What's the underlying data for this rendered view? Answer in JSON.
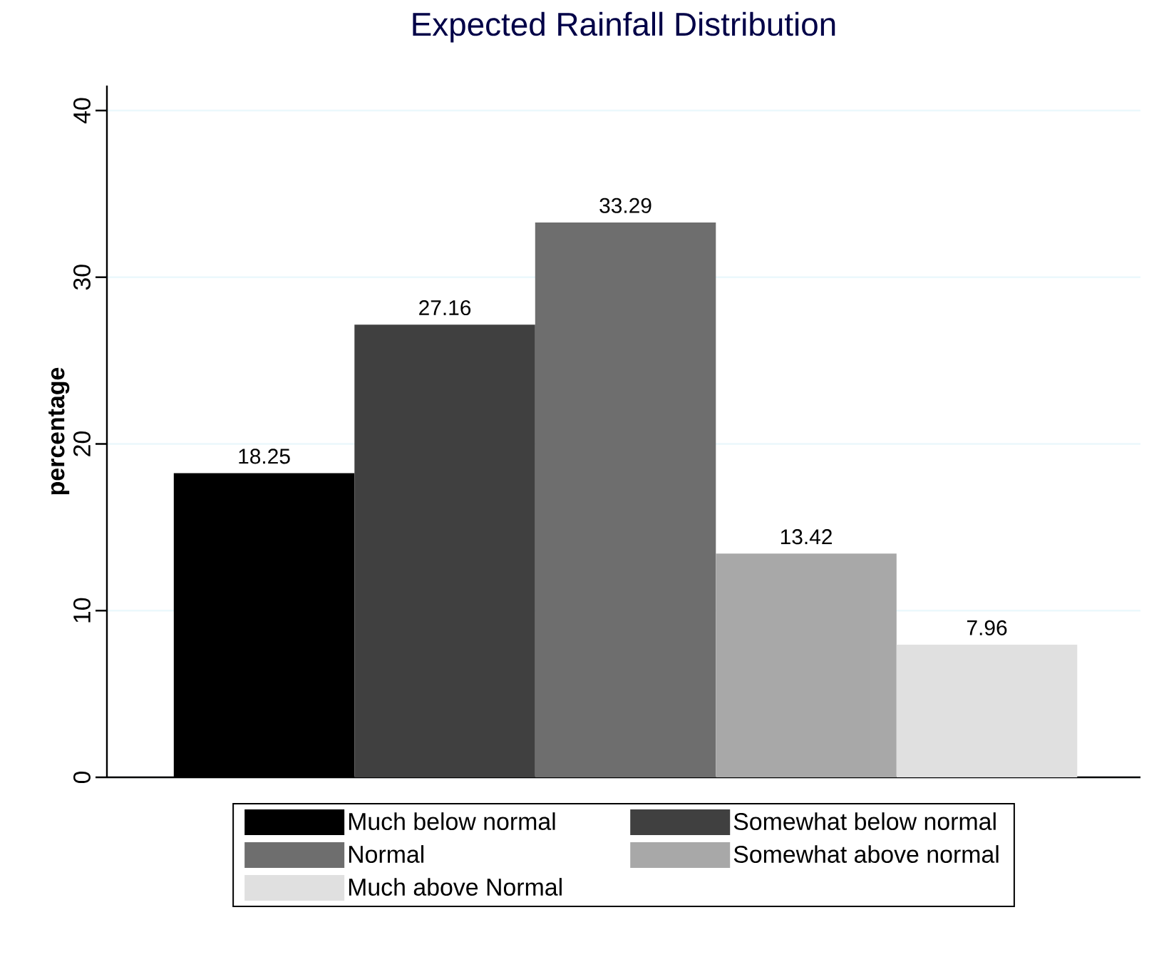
{
  "chart_data": {
    "type": "bar",
    "title": "Expected Rainfall Distribution",
    "ylabel": "percentage",
    "categories": [
      null,
      null,
      null,
      null,
      null
    ],
    "series": [
      {
        "name": "Much below normal",
        "color": "#000000",
        "values": [
          18.25,
          null,
          null,
          null,
          null
        ]
      },
      {
        "name": "Somewhat below normal",
        "color": "#404040",
        "values": [
          null,
          27.16,
          null,
          null,
          null
        ]
      },
      {
        "name": "Normal",
        "color": "#6e6e6e",
        "values": [
          null,
          null,
          33.29,
          null,
          null
        ]
      },
      {
        "name": "Somewhat above normal",
        "color": "#a8a8a8",
        "values": [
          null,
          null,
          null,
          13.42,
          null
        ]
      },
      {
        "name": "Much above Normal",
        "color": "#e0e0e0",
        "values": [
          null,
          null,
          null,
          null,
          7.96
        ]
      }
    ],
    "ylim": [
      0,
      41.5
    ],
    "yticks": [
      0,
      10,
      20,
      30,
      40
    ],
    "grid": "y",
    "legend": "bottom",
    "data_labels": true
  }
}
